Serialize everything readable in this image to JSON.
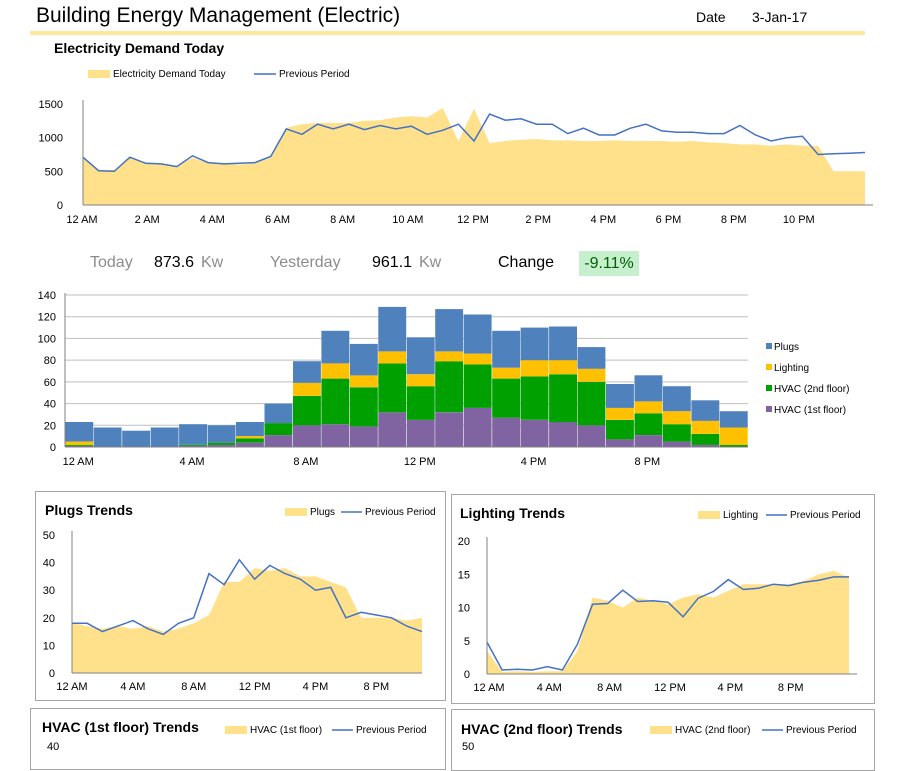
{
  "header": {
    "title": "Building Energy Management (Electric)",
    "date_label": "Date",
    "date_value": "3-Jan-17"
  },
  "colors": {
    "fill": "#ffe18c",
    "line": "#4472c4",
    "plugs": "#4f81bd",
    "lighting": "#ffc000",
    "hvac2": "#00a000",
    "hvac1": "#8064a2",
    "change_bg": "#c6efce",
    "change_text": "#006100"
  },
  "kpi": {
    "today_label": "Today",
    "today_value": "873.6",
    "today_unit": "Kw",
    "yesterday_label": "Yesterday",
    "yesterday_value": "961.1",
    "yesterday_unit": "Kw",
    "change_label": "Change",
    "change_value": "-9.11%"
  },
  "chart_data": [
    {
      "id": "demand",
      "type": "area",
      "title": "Electricity Demand Today",
      "legend": {
        "area": "Electricity Demand Today",
        "line": "Previous Period"
      },
      "ylim": [
        0,
        1500
      ],
      "yticks": [
        0,
        500,
        1000,
        1500
      ],
      "x_labels": [
        "12 AM",
        "2 AM",
        "4 AM",
        "6 AM",
        "8 AM",
        "10 AM",
        "12 PM",
        "2 PM",
        "4 PM",
        "6 PM",
        "8 PM",
        "10 PM"
      ],
      "label_every": 4,
      "area": [
        700,
        520,
        520,
        700,
        630,
        620,
        580,
        700,
        620,
        620,
        600,
        620,
        700,
        1150,
        1200,
        1220,
        1220,
        1220,
        1250,
        1260,
        1300,
        1320,
        1300,
        1440,
        950,
        1430,
        920,
        950,
        970,
        980,
        960,
        960,
        950,
        950,
        960,
        950,
        950,
        950,
        940,
        950,
        930,
        920,
        900,
        900,
        880,
        900,
        880,
        880,
        500,
        500,
        500
      ],
      "line": [
        710,
        510,
        500,
        710,
        620,
        610,
        570,
        730,
        630,
        610,
        620,
        630,
        720,
        1130,
        1050,
        1200,
        1130,
        1200,
        1120,
        1180,
        1130,
        1170,
        1050,
        1110,
        1200,
        950,
        1350,
        1260,
        1280,
        1200,
        1200,
        1060,
        1140,
        1040,
        1040,
        1140,
        1200,
        1100,
        1080,
        1080,
        1060,
        1060,
        1180,
        1040,
        950,
        1000,
        1020,
        750,
        760,
        770,
        780
      ]
    },
    {
      "id": "stack",
      "type": "bar",
      "stacked": true,
      "ylim": [
        0,
        140
      ],
      "yticks": [
        0,
        20,
        40,
        60,
        80,
        100,
        120,
        140
      ],
      "x_labels": [
        "12 AM",
        "4 AM",
        "8 AM",
        "12 PM",
        "4 PM",
        "8 PM"
      ],
      "label_every": 4,
      "series": [
        {
          "name": "HVAC (1st floor)",
          "color": "#8064a2",
          "values": [
            1,
            0,
            0,
            0,
            1,
            2,
            4,
            11,
            20,
            21,
            19,
            32,
            25,
            32,
            36,
            27,
            25,
            23,
            20,
            7,
            11,
            5,
            2,
            0
          ]
        },
        {
          "name": "HVAC (2nd floor)",
          "color": "#00a000",
          "values": [
            1,
            0,
            0,
            0,
            1,
            2,
            4,
            11,
            27,
            42,
            36,
            45,
            31,
            47,
            40,
            36,
            40,
            44,
            40,
            18,
            20,
            16,
            10,
            2
          ]
        },
        {
          "name": "Lighting",
          "color": "#ffc000",
          "values": [
            3,
            0,
            0,
            0,
            0,
            0,
            2,
            0,
            12,
            14,
            11,
            11,
            11,
            9,
            10,
            10,
            15,
            13,
            12,
            11,
            11,
            12,
            12,
            16
          ]
        },
        {
          "name": "Plugs",
          "color": "#4f81bd",
          "values": [
            18,
            18,
            15,
            18,
            19,
            16,
            13,
            18,
            20,
            30,
            29,
            41,
            34,
            39,
            36,
            34,
            30,
            31,
            20,
            22,
            24,
            23,
            19,
            15
          ]
        }
      ],
      "legend_order": [
        "Plugs",
        "Lighting",
        "HVAC (2nd floor)",
        "HVAC (1st floor)"
      ]
    },
    {
      "id": "plugs",
      "type": "area",
      "title": "Plugs Trends",
      "legend": {
        "area": "Plugs",
        "line": "Previous Period"
      },
      "ylim": [
        0,
        50
      ],
      "yticks": [
        0,
        10,
        20,
        30,
        40,
        50
      ],
      "x_labels": [
        "12 AM",
        "4 AM",
        "8 AM",
        "12 PM",
        "4 PM",
        "8 PM"
      ],
      "label_every": 4,
      "area": [
        18,
        17,
        16,
        17,
        16,
        17,
        15,
        16,
        18,
        21,
        33,
        33,
        38,
        37,
        38,
        35,
        35,
        33,
        31,
        20,
        20,
        20,
        19,
        20
      ],
      "line": [
        18,
        18,
        15,
        17,
        19,
        16,
        14,
        18,
        20,
        36,
        32,
        41,
        34,
        39,
        36,
        34,
        30,
        31,
        20,
        22,
        21,
        20,
        17,
        15
      ]
    },
    {
      "id": "lighting",
      "type": "area",
      "title": "Lighting Trends",
      "legend": {
        "area": "Lighting",
        "line": "Previous Period"
      },
      "ylim": [
        0,
        20
      ],
      "yticks": [
        0,
        5,
        10,
        15,
        20
      ],
      "x_labels": [
        "12 AM",
        "4 AM",
        "8 AM",
        "12 PM",
        "4 PM",
        "8 PM"
      ],
      "label_every": 4,
      "area": [
        3.5,
        0.3,
        0.4,
        0.3,
        0.4,
        0.4,
        3.5,
        11.5,
        11,
        10,
        11.5,
        11,
        10.5,
        11.5,
        12,
        11.5,
        12.5,
        13.5,
        13.5,
        13.5,
        13.5,
        14,
        15,
        15.5,
        14.5
      ],
      "line": [
        4.8,
        0.6,
        0.7,
        0.6,
        1.1,
        0.6,
        4.5,
        10.5,
        10.6,
        12.6,
        10.9,
        11,
        10.8,
        8.6,
        11.4,
        12.4,
        14.2,
        12.7,
        12.9,
        13.5,
        13.3,
        13.8,
        14.1,
        14.6,
        14.6
      ]
    },
    {
      "id": "hvac1",
      "type": "area",
      "title": "HVAC (1st floor) Trends",
      "legend": {
        "area": "HVAC (1st floor)",
        "line": "Previous Period"
      },
      "ytick_top": "40"
    },
    {
      "id": "hvac2",
      "type": "area",
      "title": "HVAC (2nd floor) Trends",
      "legend": {
        "area": "HVAC (2nd floor)",
        "line": "Previous Period"
      },
      "ytick_top": "50"
    }
  ]
}
